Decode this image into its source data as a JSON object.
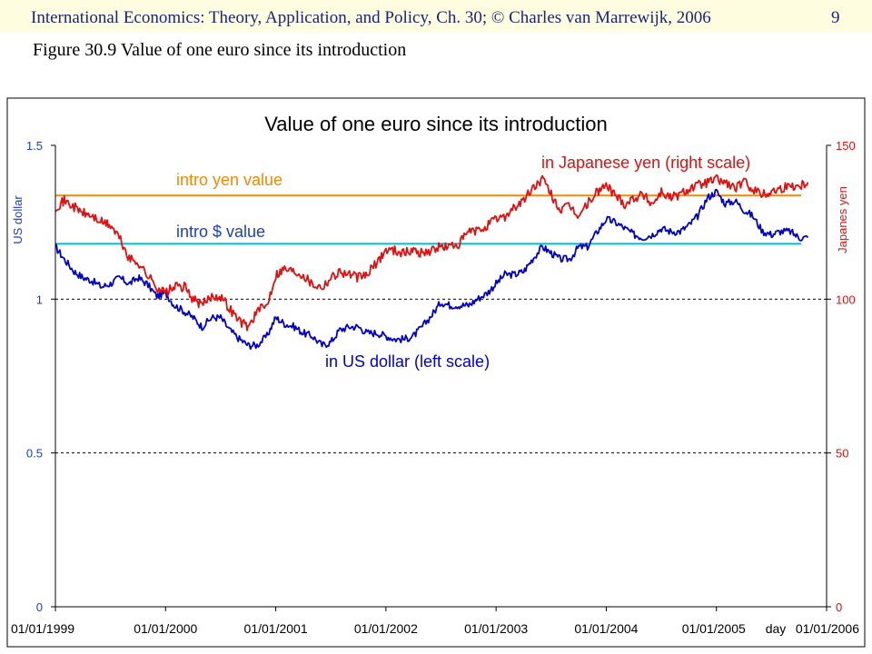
{
  "header": {
    "text": "International Economics: Theory, Application, and Policy, Ch. 30;  © Charles van Marrewijk, 2006",
    "page_number": "9"
  },
  "caption": "Figure 30.9 Value of one euro since its introduction",
  "colors": {
    "usd_series": "#0000c8",
    "yen_series": "#e01010",
    "intro_yen_line": "#f08a00",
    "intro_usd_line": "#00bcd8",
    "left_axis_text": "#1a3fc8",
    "right_axis_text": "#e01010"
  },
  "chart_data": {
    "type": "line",
    "title": "Value of one euro since its introduction",
    "ylabel_left": "US dollar",
    "ylabel_right": "Japanes yen",
    "x_tick_labels": [
      "01/01/1999",
      "01/01/2000",
      "01/01/2001",
      "01/01/2002",
      "01/01/2003",
      "01/01/2004",
      "01/01/2005",
      "day",
      "01/01/2006"
    ],
    "xlim": [
      1999.0,
      2006.0
    ],
    "ylim_left": [
      0,
      1.5
    ],
    "ylim_right": [
      0,
      150
    ],
    "yticks_left": [
      "0",
      "0.5",
      "1",
      "1.5"
    ],
    "yticks_right": [
      "0",
      "50",
      "100",
      "150"
    ],
    "gridlines": "dashed at 0.5 and 1 (left scale)",
    "reference_lines": [
      {
        "label": "intro yen value",
        "axis": "right",
        "value": 133.7
      },
      {
        "label": "intro $ value",
        "axis": "left",
        "value": 1.18
      }
    ],
    "series": [
      {
        "name": "in US dollar (left scale)",
        "axis": "left",
        "x": [
          1999.0,
          1999.08,
          1999.17,
          1999.25,
          1999.33,
          1999.42,
          1999.5,
          1999.58,
          1999.67,
          1999.75,
          1999.83,
          1999.92,
          2000.0,
          2000.08,
          2000.17,
          2000.25,
          2000.33,
          2000.42,
          2000.5,
          2000.58,
          2000.67,
          2000.75,
          2000.83,
          2000.92,
          2001.0,
          2001.08,
          2001.17,
          2001.25,
          2001.33,
          2001.42,
          2001.5,
          2001.58,
          2001.67,
          2001.75,
          2001.83,
          2001.92,
          2002.0,
          2002.08,
          2002.17,
          2002.25,
          2002.33,
          2002.42,
          2002.5,
          2002.58,
          2002.67,
          2002.75,
          2002.83,
          2002.92,
          2003.0,
          2003.08,
          2003.17,
          2003.25,
          2003.33,
          2003.42,
          2003.5,
          2003.58,
          2003.67,
          2003.75,
          2003.83,
          2003.92,
          2004.0,
          2004.08,
          2004.17,
          2004.25,
          2004.33,
          2004.42,
          2004.5,
          2004.58,
          2004.67,
          2004.75,
          2004.83,
          2004.92,
          2005.0,
          2005.08,
          2005.17,
          2005.25,
          2005.33,
          2005.42,
          2005.5,
          2005.58,
          2005.67,
          2005.75,
          2005.83
        ],
        "y": [
          1.17,
          1.13,
          1.09,
          1.07,
          1.06,
          1.04,
          1.05,
          1.07,
          1.05,
          1.07,
          1.05,
          1.01,
          1.02,
          0.98,
          0.96,
          0.94,
          0.91,
          0.94,
          0.94,
          0.9,
          0.87,
          0.85,
          0.85,
          0.88,
          0.94,
          0.92,
          0.91,
          0.89,
          0.88,
          0.85,
          0.86,
          0.9,
          0.91,
          0.91,
          0.89,
          0.89,
          0.88,
          0.87,
          0.87,
          0.88,
          0.91,
          0.95,
          0.99,
          0.98,
          0.98,
          0.98,
          1.0,
          1.02,
          1.05,
          1.08,
          1.08,
          1.09,
          1.13,
          1.17,
          1.15,
          1.13,
          1.13,
          1.17,
          1.17,
          1.22,
          1.26,
          1.25,
          1.23,
          1.21,
          1.2,
          1.21,
          1.23,
          1.22,
          1.22,
          1.24,
          1.27,
          1.33,
          1.35,
          1.31,
          1.32,
          1.29,
          1.27,
          1.22,
          1.21,
          1.22,
          1.22,
          1.2,
          1.2
        ]
      },
      {
        "name": "in Japanese yen (right scale)",
        "axis": "right",
        "x": [
          1999.0,
          1999.08,
          1999.17,
          1999.25,
          1999.33,
          1999.42,
          1999.5,
          1999.58,
          1999.67,
          1999.75,
          1999.83,
          1999.92,
          2000.0,
          2000.08,
          2000.17,
          2000.25,
          2000.33,
          2000.42,
          2000.5,
          2000.58,
          2000.67,
          2000.75,
          2000.83,
          2000.92,
          2001.0,
          2001.08,
          2001.17,
          2001.25,
          2001.33,
          2001.42,
          2001.5,
          2001.58,
          2001.67,
          2001.75,
          2001.83,
          2001.92,
          2002.0,
          2002.08,
          2002.17,
          2002.25,
          2002.33,
          2002.42,
          2002.5,
          2002.58,
          2002.67,
          2002.75,
          2002.83,
          2002.92,
          2003.0,
          2003.08,
          2003.17,
          2003.25,
          2003.33,
          2003.42,
          2003.5,
          2003.58,
          2003.67,
          2003.75,
          2003.83,
          2003.92,
          2004.0,
          2004.08,
          2004.17,
          2004.25,
          2004.33,
          2004.42,
          2004.5,
          2004.58,
          2004.67,
          2004.75,
          2004.83,
          2004.92,
          2005.0,
          2005.08,
          2005.17,
          2005.25,
          2005.33,
          2005.42,
          2005.5,
          2005.58,
          2005.67,
          2005.75,
          2005.83
        ],
        "y": [
          130,
          132,
          130,
          128,
          127,
          125,
          124,
          120,
          113,
          112,
          108,
          104,
          102,
          104,
          104,
          100,
          98,
          101,
          101,
          97,
          93,
          91,
          96,
          98,
          108,
          110,
          109,
          108,
          105,
          104,
          107,
          109,
          108,
          107,
          108,
          112,
          116,
          116,
          115,
          116,
          115,
          116,
          117,
          117,
          118,
          122,
          122,
          124,
          126,
          127,
          130,
          132,
          136,
          139,
          134,
          129,
          130,
          127,
          131,
          135,
          137,
          134,
          131,
          133,
          134,
          131,
          135,
          133,
          134,
          136,
          137,
          138,
          139,
          138,
          136,
          138,
          136,
          134,
          135,
          136,
          137,
          137,
          138
        ]
      }
    ],
    "annotations": [
      "intro yen value",
      "intro $ value",
      "in Japanese yen (right scale)",
      "in US dollar (left scale)"
    ]
  }
}
